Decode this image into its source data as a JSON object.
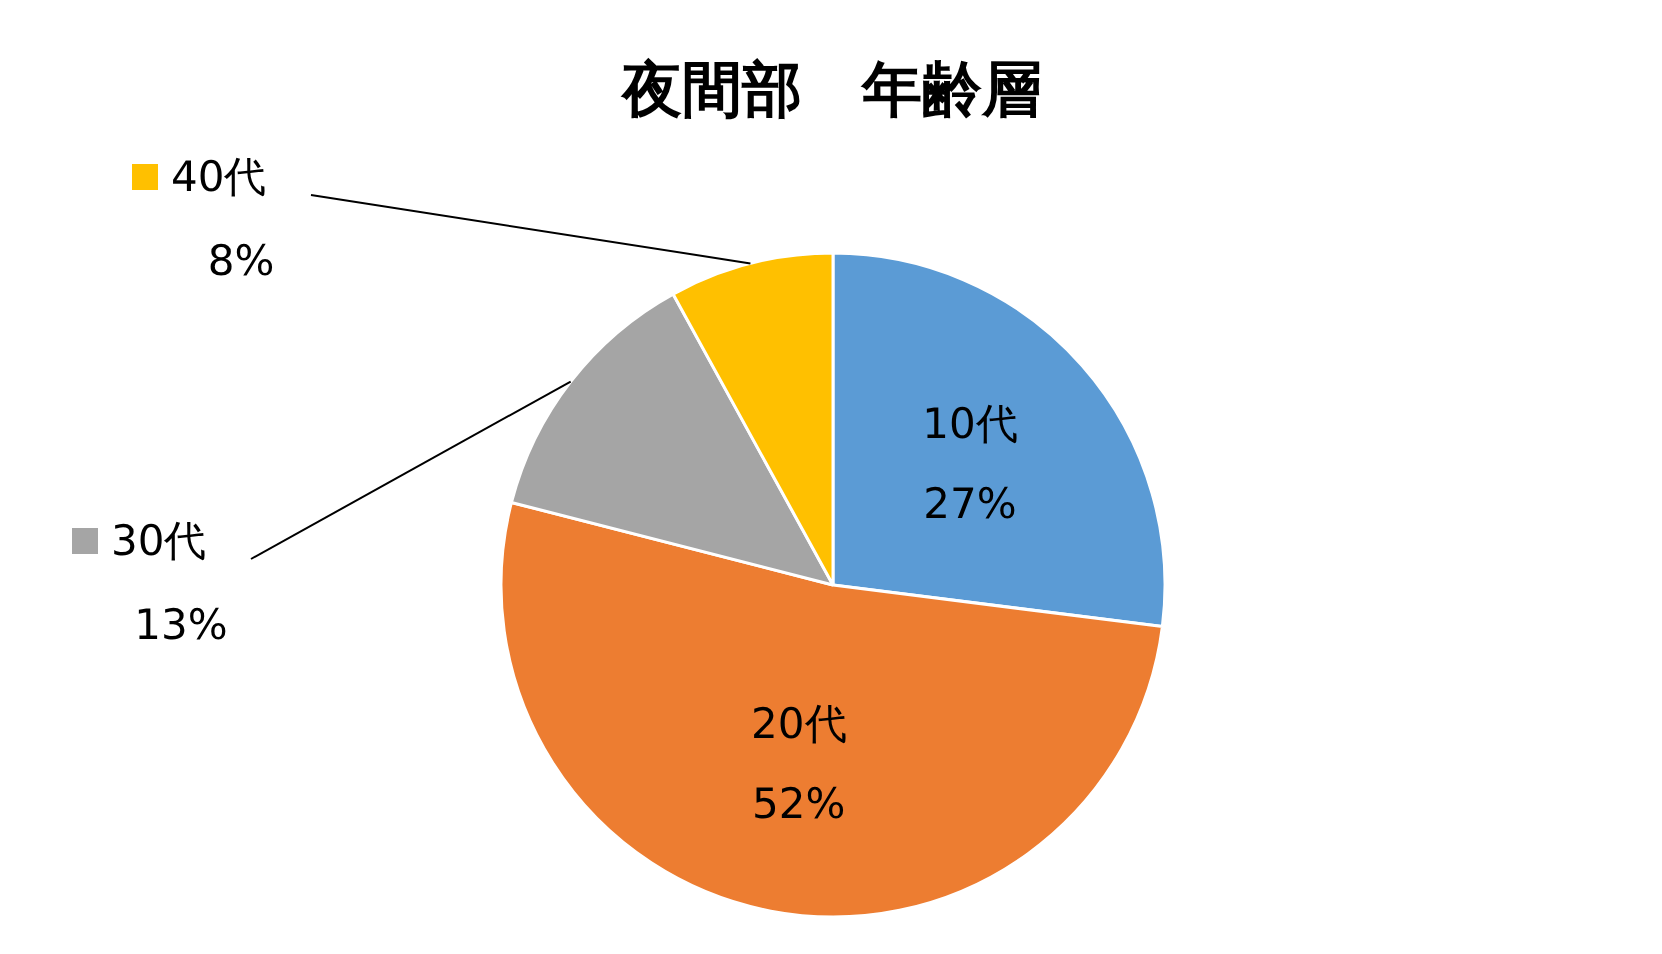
{
  "chart_data": {
    "type": "pie",
    "title": "夜間部　年齢層",
    "categories": [
      "10代",
      "20代",
      "30代",
      "40代"
    ],
    "values": [
      27,
      52,
      13,
      8
    ],
    "colors": [
      "#5b9bd5",
      "#ed7d31",
      "#a5a5a5",
      "#ffc000"
    ],
    "value_labels": [
      "27%",
      "52%",
      "13%",
      "8%"
    ],
    "legend": "left"
  }
}
